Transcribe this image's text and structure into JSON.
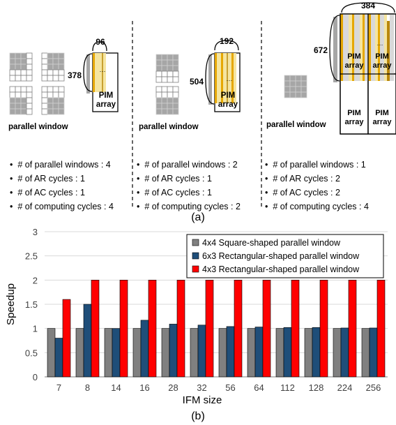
{
  "panel_a": {
    "caption": "(a)",
    "columns": [
      {
        "window_label": "parallel window",
        "height_label": "378",
        "width_label": "96",
        "array_label": "PIM array",
        "bullets": [
          "# of parallel windows :  4",
          "# of AR cycles : 1",
          "# of AC cycles : 1",
          "# of computing cycles : 4"
        ]
      },
      {
        "window_label": "parallel window",
        "height_label": "504",
        "width_label": "192",
        "array_label": "PIM array",
        "bullets": [
          "# of parallel windows : 2",
          "# of AR cycles : 1",
          "# of AC cycles : 1",
          "# of computing cycles : 2"
        ]
      },
      {
        "window_label": "parallel window",
        "height_label": "672",
        "width_label": "384",
        "array_label": "PIM array",
        "bullets": [
          "# of parallel windows : 1",
          "# of AR cycles : 2",
          "# of AC cycles : 2",
          "# of computing cycles : 4"
        ]
      }
    ]
  },
  "panel_b": {
    "caption": "(b)"
  },
  "chart_data": {
    "type": "bar",
    "xlabel": "IFM size",
    "ylabel": "Speedup",
    "ylim": [
      0,
      3
    ],
    "yticks": [
      "0",
      "0.5",
      "1",
      "1.5",
      "2",
      "2.5",
      "3"
    ],
    "categories": [
      "7",
      "8",
      "14",
      "16",
      "28",
      "32",
      "56",
      "64",
      "112",
      "128",
      "224",
      "256"
    ],
    "legend_position": "top-right",
    "grid": true,
    "series": [
      {
        "name": "4x4 Square-shaped parallel window",
        "color": "#808080",
        "values": [
          1,
          1,
          1,
          1,
          1,
          1,
          1,
          1,
          1,
          1,
          1,
          1
        ]
      },
      {
        "name": "6x3 Rectangular-shaped parallel window",
        "color": "#1f4e79",
        "values": [
          0.8,
          1.5,
          1,
          1.17,
          1.09,
          1.07,
          1.04,
          1.03,
          1.02,
          1.02,
          1.01,
          1.01
        ]
      },
      {
        "name": "4x3 Rectangular-shaped parallel window",
        "color": "#ff0000",
        "values": [
          1.6,
          2,
          2,
          2,
          2,
          2,
          2,
          2,
          2,
          2,
          2,
          2
        ]
      }
    ]
  }
}
